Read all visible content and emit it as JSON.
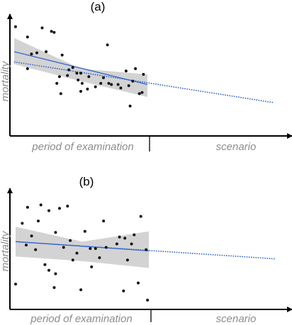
{
  "chart_data": [
    {
      "panel_label": "(a)",
      "type": "scatter",
      "xlabel_examination": "period of examination",
      "xlabel_scenario": "scenario",
      "ylabel": "mortality",
      "grid": false,
      "legend": "none",
      "colors": {
        "points": "#111111",
        "fit": "#3366cc",
        "confidence_band": "#c8c8c8",
        "axes": "#000000"
      },
      "points": [
        [
          0.01,
          0.92
        ],
        [
          0.1,
          0.83
        ],
        [
          0.13,
          0.68
        ],
        [
          0.21,
          0.91
        ],
        [
          0.24,
          0.7
        ],
        [
          0.28,
          0.88
        ],
        [
          0.3,
          0.87
        ],
        [
          0.17,
          0.69
        ],
        [
          0.1,
          0.55
        ],
        [
          0.36,
          0.67
        ],
        [
          0.4,
          0.49
        ],
        [
          0.44,
          0.56
        ],
        [
          0.41,
          0.54
        ],
        [
          0.47,
          0.51
        ],
        [
          0.51,
          0.42
        ],
        [
          0.34,
          0.48
        ],
        [
          0.32,
          0.42
        ],
        [
          0.35,
          0.33
        ],
        [
          0.48,
          0.45
        ],
        [
          0.5,
          0.51
        ],
        [
          0.56,
          0.48
        ],
        [
          0.5,
          0.35
        ],
        [
          0.55,
          0.37
        ],
        [
          0.61,
          0.39
        ],
        [
          0.65,
          0.42
        ],
        [
          0.67,
          0.47
        ],
        [
          0.7,
          0.76
        ],
        [
          0.71,
          0.42
        ],
        [
          0.73,
          0.41
        ],
        [
          0.78,
          0.41
        ],
        [
          0.8,
          0.38
        ],
        [
          0.84,
          0.53
        ],
        [
          0.86,
          0.4
        ],
        [
          0.87,
          0.22
        ],
        [
          0.89,
          0.44
        ],
        [
          0.91,
          0.55
        ],
        [
          0.94,
          0.33
        ],
        [
          0.96,
          0.34
        ],
        [
          0.97,
          0.5
        ]
      ],
      "fit_line": {
        "x": [
          0,
          1
        ],
        "y": [
          0.7,
          0.41
        ]
      },
      "confidence_band": {
        "x": [
          0,
          0.5,
          1
        ],
        "upper": [
          0.82,
          0.55,
          0.5
        ],
        "lower": [
          0.59,
          0.44,
          0.3
        ]
      },
      "scenario_extrapolation": {
        "x": [
          0,
          1.95
        ],
        "y": [
          0.61,
          0.25
        ]
      }
    },
    {
      "panel_label": "(b)",
      "type": "scatter",
      "xlabel_examination": "period of examination",
      "xlabel_scenario": "scenario",
      "ylabel": "mortality",
      "grid": false,
      "legend": "none",
      "colors": {
        "points": "#111111",
        "fit": "#3366cc",
        "confidence_band": "#c8c8c8",
        "axes": "#000000"
      },
      "points": [
        [
          0.0,
          0.19
        ],
        [
          0.05,
          0.72
        ],
        [
          0.09,
          0.86
        ],
        [
          0.12,
          0.61
        ],
        [
          0.15,
          0.49
        ],
        [
          0.17,
          0.74
        ],
        [
          0.19,
          0.88
        ],
        [
          0.25,
          0.83
        ],
        [
          0.08,
          0.53
        ],
        [
          0.22,
          0.36
        ],
        [
          0.25,
          0.31
        ],
        [
          0.3,
          0.64
        ],
        [
          0.33,
          0.85
        ],
        [
          0.3,
          0.28
        ],
        [
          0.29,
          0.16
        ],
        [
          0.36,
          0.51
        ],
        [
          0.39,
          0.87
        ],
        [
          0.41,
          0.57
        ],
        [
          0.43,
          0.4
        ],
        [
          0.46,
          0.46
        ],
        [
          0.49,
          0.14
        ],
        [
          0.52,
          0.65
        ],
        [
          0.56,
          0.5
        ],
        [
          0.57,
          0.34
        ],
        [
          0.6,
          0.5
        ],
        [
          0.63,
          0.42
        ],
        [
          0.66,
          0.74
        ],
        [
          0.68,
          0.51
        ],
        [
          0.76,
          0.54
        ],
        [
          0.78,
          0.6
        ],
        [
          0.81,
          0.13
        ],
        [
          0.82,
          0.59
        ],
        [
          0.84,
          0.4
        ],
        [
          0.87,
          0.54
        ],
        [
          0.89,
          0.62
        ],
        [
          0.92,
          0.2
        ],
        [
          0.94,
          0.78
        ],
        [
          0.98,
          0.49
        ],
        [
          0.99,
          0.05
        ]
      ],
      "fit_line": {
        "x": [
          0,
          1
        ],
        "y": [
          0.56,
          0.48
        ]
      },
      "confidence_band": {
        "x": [
          0,
          0.5,
          1
        ],
        "upper": [
          0.69,
          0.56,
          0.65
        ],
        "lower": [
          0.43,
          0.39,
          0.33
        ]
      },
      "scenario_extrapolation": {
        "x": [
          0,
          1.95
        ],
        "y": [
          0.56,
          0.41
        ]
      }
    }
  ]
}
